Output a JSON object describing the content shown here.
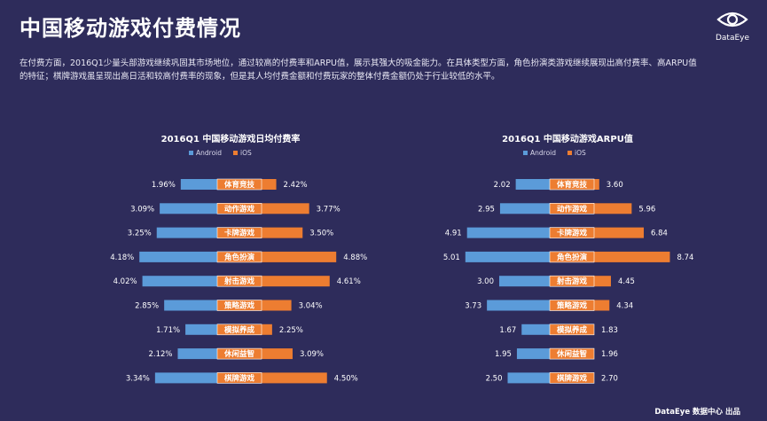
{
  "header": {
    "title": "中国移动游戏付费情况",
    "logo_text": "DataEye",
    "description": "在付费方面，2016Q1少量头部游戏继续巩固其市场地位，通过较高的付费率和ARPU值，展示其强大的吸金能力。在具体类型方面，角色扮演类游戏继续展现出高付费率、高ARPU值的特征；棋牌游戏虽呈现出高日活和较高付费率的现象，但是其人均付费金额和付费玩家的整体付费金额仍处于行业较低的水平。"
  },
  "colors": {
    "background": "#2e2c5b",
    "android": "#5b9bd9",
    "ios": "#ed7d31",
    "label_box": "#ed7d31"
  },
  "footer": {
    "credit": "DataEye 数据中心 出品"
  },
  "chart_data": [
    {
      "type": "bar",
      "title": "2016Q1 中国移动游戏日均付费率",
      "legend": [
        "Android",
        "iOS"
      ],
      "categories": [
        "体育竞技",
        "动作游戏",
        "卡牌游戏",
        "角色扮演",
        "射击游戏",
        "策略游戏",
        "模拟养成",
        "休闲益智",
        "棋牌游戏"
      ],
      "series": [
        {
          "name": "Android",
          "values": [
            1.96,
            3.09,
            3.25,
            4.18,
            4.02,
            2.85,
            1.71,
            2.12,
            3.34
          ]
        },
        {
          "name": "iOS",
          "values": [
            2.42,
            3.77,
            3.5,
            4.88,
            4.61,
            3.04,
            2.25,
            3.09,
            4.5
          ]
        }
      ],
      "labels_android": [
        "1.96%",
        "3.09%",
        "3.25%",
        "4.18%",
        "4.02%",
        "2.85%",
        "1.71%",
        "2.12%",
        "3.34%"
      ],
      "labels_ios": [
        "2.42%",
        "3.77%",
        "3.50%",
        "4.88%",
        "4.61%",
        "3.04%",
        "2.25%",
        "3.09%",
        "4.50%"
      ]
    },
    {
      "type": "bar",
      "title": "2016Q1 中国移动游戏ARPU值",
      "legend": [
        "Android",
        "iOS"
      ],
      "categories": [
        "体育竞技",
        "动作游戏",
        "卡牌游戏",
        "角色扮演",
        "射击游戏",
        "策略游戏",
        "模拟养成",
        "休闲益智",
        "棋牌游戏"
      ],
      "series": [
        {
          "name": "Android",
          "values": [
            2.02,
            2.95,
            4.91,
            5.01,
            3.0,
            3.73,
            1.67,
            1.95,
            2.5
          ]
        },
        {
          "name": "iOS",
          "values": [
            3.6,
            5.96,
            6.84,
            8.74,
            4.45,
            4.34,
            1.83,
            1.96,
            2.7
          ]
        }
      ],
      "labels_android": [
        "2.02",
        "2.95",
        "4.91",
        "5.01",
        "3.00",
        "3.73",
        "1.67",
        "1.95",
        "2.50"
      ],
      "labels_ios": [
        "3.60",
        "5.96",
        "6.84",
        "8.74",
        "4.45",
        "4.34",
        "1.83",
        "1.96",
        "2.70"
      ]
    }
  ]
}
